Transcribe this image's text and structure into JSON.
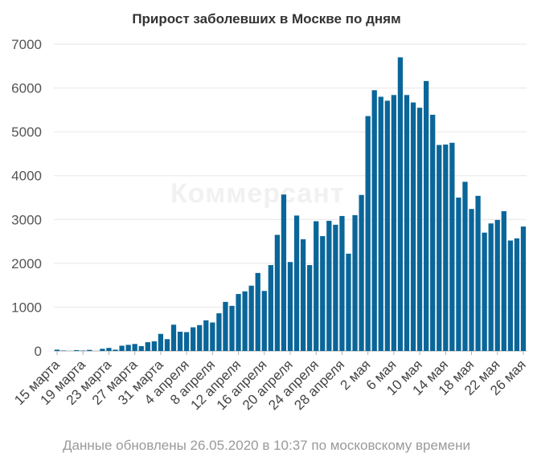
{
  "watermark": "Коммерсант",
  "footnote": "Данные обновлены 26.05.2020 в 10:37 по московскому времени",
  "colors": {
    "bar": "#0a6699",
    "grid": "#e6e6e6",
    "axis": "#b0b0b0"
  },
  "chart_data": {
    "type": "bar",
    "title": "Прирост заболевших в Москве по дням",
    "xlabel": "",
    "ylabel": "",
    "ylim": [
      0,
      7000
    ],
    "yticks": [
      0,
      1000,
      2000,
      3000,
      4000,
      5000,
      6000,
      7000
    ],
    "grid": true,
    "legend": "none",
    "x_tick_labels": [
      "15 марта",
      "19 марта",
      "23 марта",
      "27 марта",
      "31 марта",
      "4 апреля",
      "8 апреля",
      "12 апреля",
      "16 апреля",
      "20 апреля",
      "24 апреля",
      "28 апреля",
      "2 мая",
      "6 мая",
      "10 мая",
      "14 мая",
      "18 мая",
      "22 мая",
      "26 мая"
    ],
    "categories": [
      "15 марта",
      "16 марта",
      "17 марта",
      "18 марта",
      "19 марта",
      "20 марта",
      "21 марта",
      "22 марта",
      "23 марта",
      "24 марта",
      "25 марта",
      "26 марта",
      "27 марта",
      "28 марта",
      "29 марта",
      "30 марта",
      "31 марта",
      "1 апреля",
      "2 апреля",
      "3 апреля",
      "4 апреля",
      "5 апреля",
      "6 апреля",
      "7 апреля",
      "8 апреля",
      "9 апреля",
      "10 апреля",
      "11 апреля",
      "12 апреля",
      "13 апреля",
      "14 апреля",
      "15 апреля",
      "16 апреля",
      "17 апреля",
      "18 апреля",
      "19 апреля",
      "20 апреля",
      "21 апреля",
      "22 апреля",
      "23 апреля",
      "24 апреля",
      "25 апреля",
      "26 апреля",
      "27 апреля",
      "28 апреля",
      "29 апреля",
      "30 апреля",
      "1 мая",
      "2 мая",
      "3 мая",
      "4 мая",
      "5 мая",
      "6 мая",
      "7 мая",
      "8 мая",
      "9 мая",
      "10 мая",
      "11 мая",
      "12 мая",
      "13 мая",
      "14 мая",
      "15 мая",
      "16 мая",
      "17 мая",
      "18 мая",
      "19 мая",
      "20 мая",
      "21 мая",
      "22 мая",
      "23 мая",
      "24 мая",
      "25 мая",
      "26 мая"
    ],
    "values": [
      30,
      10,
      0,
      20,
      10,
      25,
      0,
      50,
      70,
      30,
      120,
      140,
      160,
      110,
      200,
      220,
      390,
      270,
      600,
      440,
      430,
      540,
      590,
      700,
      650,
      860,
      1120,
      1030,
      1300,
      1360,
      1490,
      1780,
      1370,
      1960,
      2650,
      3570,
      2030,
      3090,
      2550,
      1960,
      2960,
      2620,
      2970,
      2880,
      3080,
      2220,
      3100,
      3560,
      5360,
      5950,
      5800,
      5710,
      5840,
      6700,
      5840,
      5670,
      5550,
      6160,
      5390,
      4700,
      4710,
      4750,
      3500,
      3860,
      3240,
      3540,
      2700,
      2910,
      2990,
      3190,
      2520,
      2570,
      2840
    ]
  }
}
